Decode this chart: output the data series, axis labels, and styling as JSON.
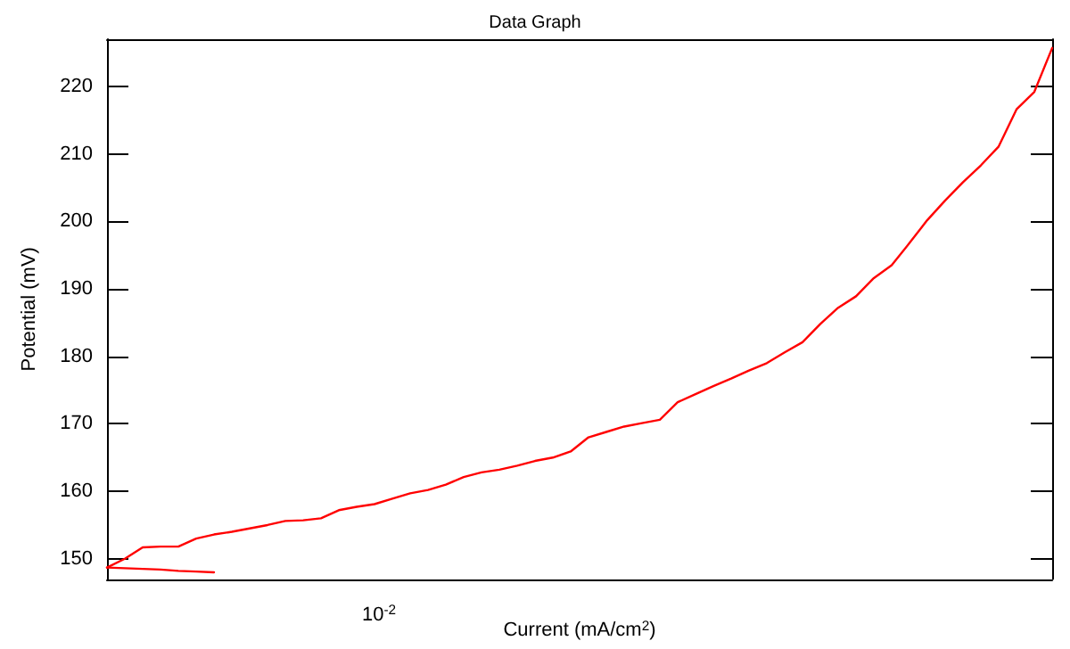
{
  "chart_data": {
    "type": "line",
    "title": "Data Graph",
    "xlabel": "Current (mA/cm$^{2}$)",
    "ylabel": "Potential (mV)",
    "annotations": [
      "10$^{-2}$"
    ],
    "marker": "none",
    "line_style": "solid",
    "ylim": [
      147,
      227
    ],
    "yticks": [
      150,
      160,
      170,
      180,
      190,
      200,
      210,
      220
    ],
    "categories": [
      null,
      null,
      null,
      null,
      null,
      null,
      null,
      null,
      null,
      null,
      null,
      null,
      null,
      null,
      null,
      null,
      null,
      null,
      null,
      null,
      null,
      null,
      null,
      null,
      null,
      null,
      null,
      null,
      null,
      null,
      null,
      null,
      null,
      null,
      null,
      null,
      null,
      null,
      null,
      null,
      null,
      null,
      null,
      null,
      null,
      null,
      null,
      null,
      null,
      null,
      null,
      null,
      null,
      null
    ],
    "series": [
      {
        "color": "#ff0000",
        "values": [
          148.7,
          150.0,
          151.7,
          151.8,
          151.8,
          153.0,
          153.6,
          154.0,
          154.5,
          155.0,
          155.6,
          155.7,
          156.0,
          157.2,
          157.7,
          158.1,
          158.9,
          159.7,
          160.2,
          161.0,
          162.1,
          162.8,
          163.2,
          163.8,
          164.5,
          165.0,
          165.9,
          168.0,
          168.8,
          169.6,
          170.1,
          170.6,
          173.2,
          174.4,
          175.6,
          176.7,
          177.9,
          179.0,
          180.6,
          182.1,
          184.8,
          187.2,
          188.9,
          191.6,
          193.5,
          196.8,
          200.2,
          203.1,
          205.8,
          208.3,
          211.1,
          216.6,
          219.2,
          225.7
        ]
      },
      {
        "color": "#ff0000",
        "values": [
          148.7,
          148.6,
          148.5,
          148.4,
          148.2,
          148.1,
          148.0,
          null,
          null,
          null,
          null,
          null,
          null,
          null,
          null,
          null,
          null,
          null,
          null,
          null,
          null,
          null,
          null,
          null,
          null,
          null,
          null,
          null,
          null,
          null,
          null,
          null,
          null,
          null,
          null,
          null,
          null,
          null,
          null,
          null,
          null,
          null,
          null,
          null,
          null,
          null,
          null,
          null,
          null,
          null,
          null,
          null,
          null,
          null
        ]
      }
    ]
  }
}
